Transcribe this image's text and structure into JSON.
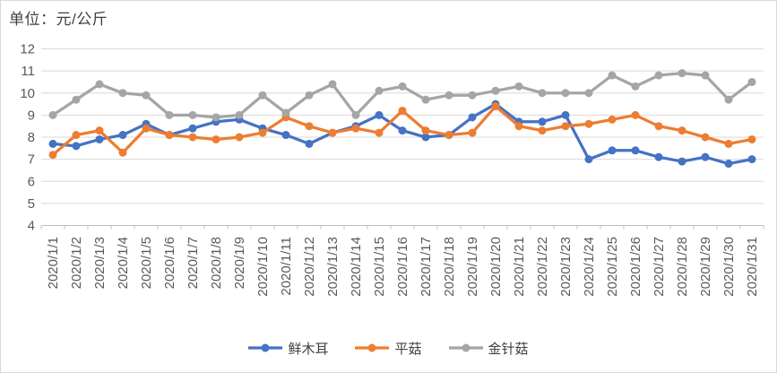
{
  "chart_data": {
    "type": "line",
    "title": "单位：元/公斤",
    "categories": [
      "2020/1/1",
      "2020/1/2",
      "2020/1/3",
      "2020/1/4",
      "2020/1/5",
      "2020/1/6",
      "2020/1/7",
      "2020/1/8",
      "2020/1/9",
      "2020/1/10",
      "2020/1/11",
      "2020/1/12",
      "2020/1/13",
      "2020/1/14",
      "2020/1/15",
      "2020/1/16",
      "2020/1/17",
      "2020/1/18",
      "2020/1/19",
      "2020/1/20",
      "2020/1/21",
      "2020/1/22",
      "2020/1/23",
      "2020/1/24",
      "2020/1/25",
      "2020/1/26",
      "2020/1/27",
      "2020/1/28",
      "2020/1/29",
      "2020/1/30",
      "2020/1/31"
    ],
    "series": [
      {
        "name": "鲜木耳",
        "color": "#4472C4",
        "values": [
          7.7,
          7.6,
          7.9,
          8.1,
          8.6,
          8.1,
          8.4,
          8.7,
          8.8,
          8.4,
          8.1,
          7.7,
          8.2,
          8.5,
          9.0,
          8.3,
          8.0,
          8.1,
          8.9,
          9.5,
          8.7,
          8.7,
          9.0,
          7.0,
          7.4,
          7.4,
          7.1,
          6.9,
          7.1,
          6.8,
          7.0
        ]
      },
      {
        "name": "平菇",
        "color": "#ED7D31",
        "values": [
          7.2,
          8.1,
          8.3,
          7.3,
          8.4,
          8.1,
          8.0,
          7.9,
          8.0,
          8.2,
          8.9,
          8.5,
          8.2,
          8.4,
          8.2,
          9.2,
          8.3,
          8.1,
          8.2,
          9.4,
          8.5,
          8.3,
          8.5,
          8.6,
          8.8,
          9.0,
          8.5,
          8.3,
          8.0,
          7.7,
          7.9
        ]
      },
      {
        "name": "金针菇",
        "color": "#A5A5A5",
        "values": [
          9.0,
          9.7,
          10.4,
          10.0,
          9.9,
          9.0,
          9.0,
          8.9,
          9.0,
          9.9,
          9.1,
          9.9,
          10.4,
          9.0,
          10.1,
          10.3,
          9.7,
          9.9,
          9.9,
          10.1,
          10.3,
          10.0,
          10.0,
          10.0,
          10.8,
          10.3,
          10.8,
          10.9,
          10.8,
          9.7,
          10.5
        ]
      }
    ],
    "ylim": [
      4,
      12
    ],
    "ytick_step": 1,
    "grid": true,
    "legend_position": "bottom",
    "colors": {
      "grid_line": "#d9d9d9",
      "axis_line": "#bfbfbf",
      "tick_label": "#595959",
      "title_text": "#404040"
    }
  }
}
